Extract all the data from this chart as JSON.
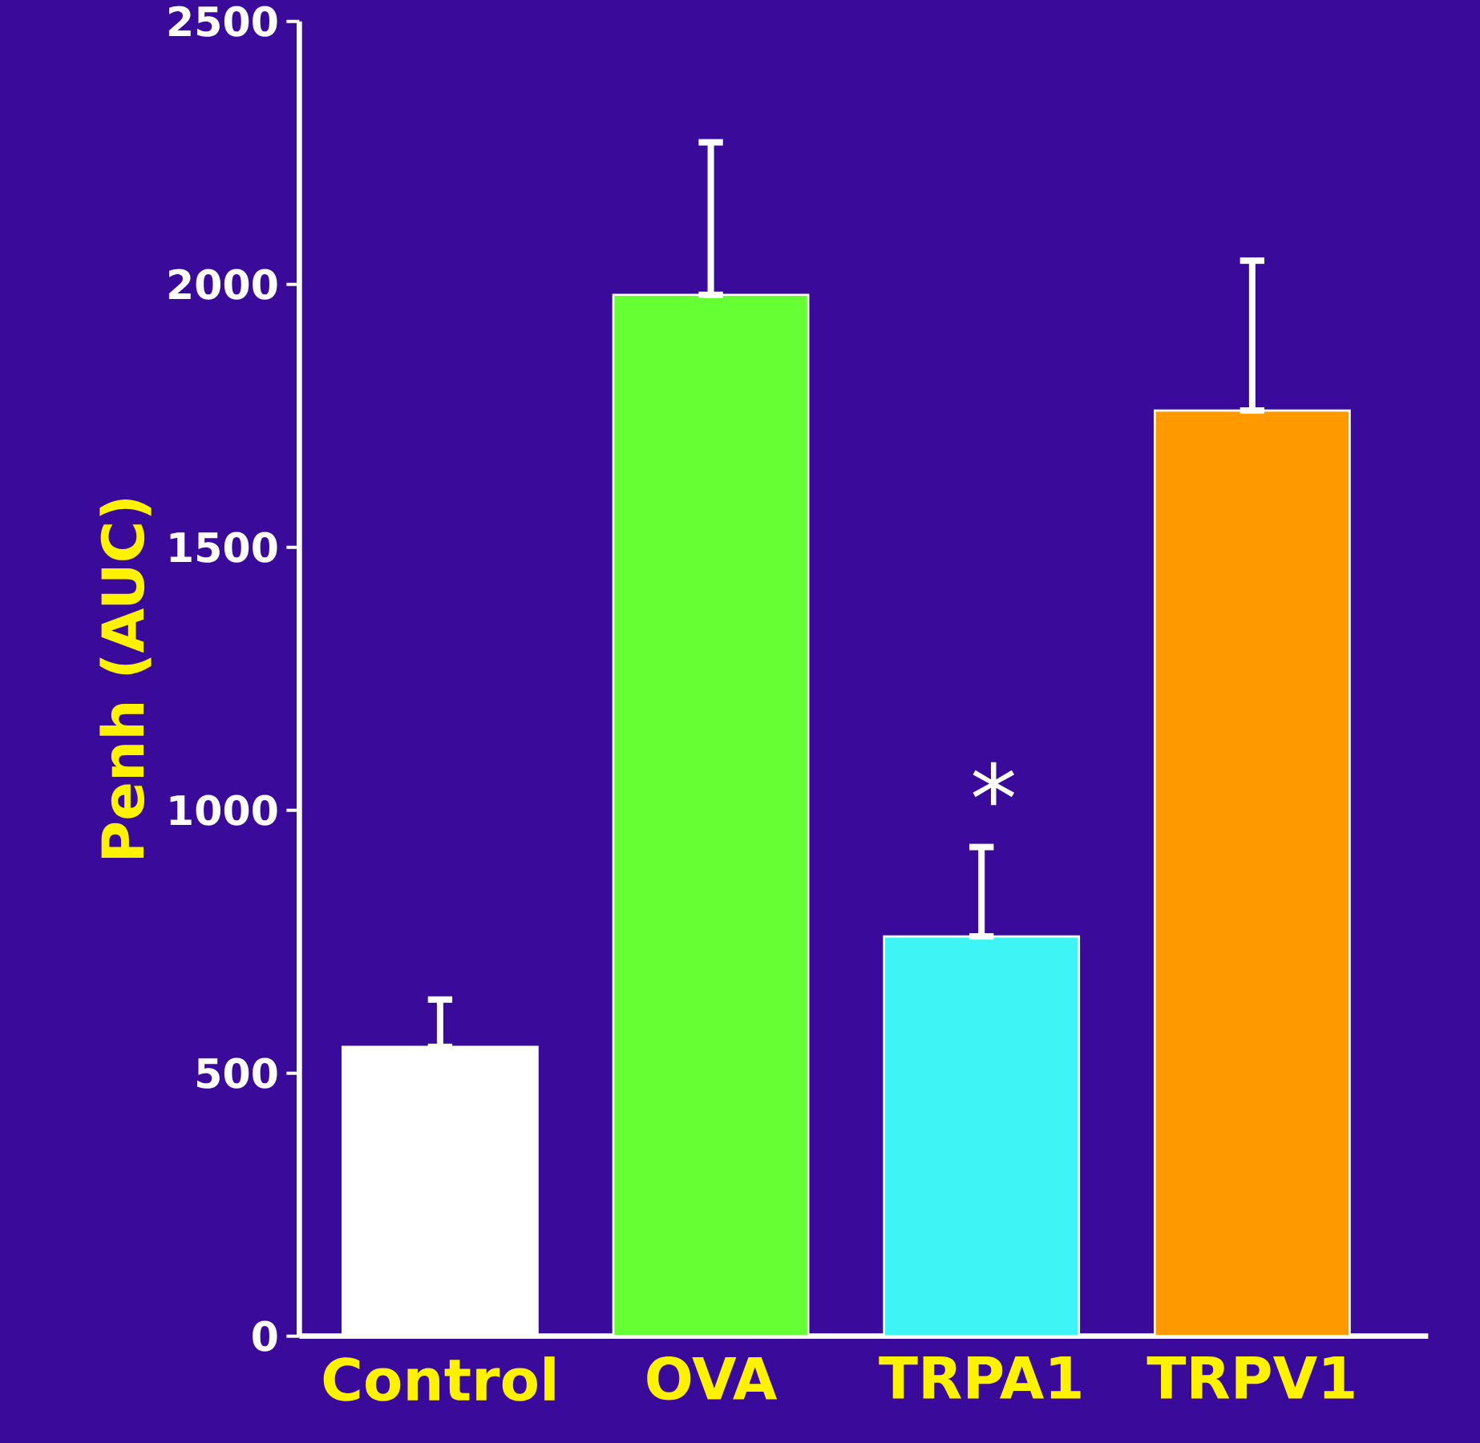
{
  "chart_data": {
    "type": "bar",
    "ylabel": "Penh (AUC)",
    "categories": [
      "Control",
      "OVA",
      "TRPA1",
      "TRPV1"
    ],
    "values": [
      550,
      1980,
      760,
      1760
    ],
    "colors": [
      "#ffffff",
      "#66ff33",
      "#3ef4f4",
      "#ff9900"
    ],
    "errors": [
      [
        550,
        640
      ],
      [
        1980,
        2270
      ],
      [
        760,
        930
      ],
      [
        1760,
        2045
      ]
    ],
    "ylim": [
      0,
      2500
    ],
    "yticks": [
      0,
      500,
      1000,
      1500,
      2000,
      2500
    ],
    "annotations": [
      "*"
    ],
    "grid": false
  }
}
